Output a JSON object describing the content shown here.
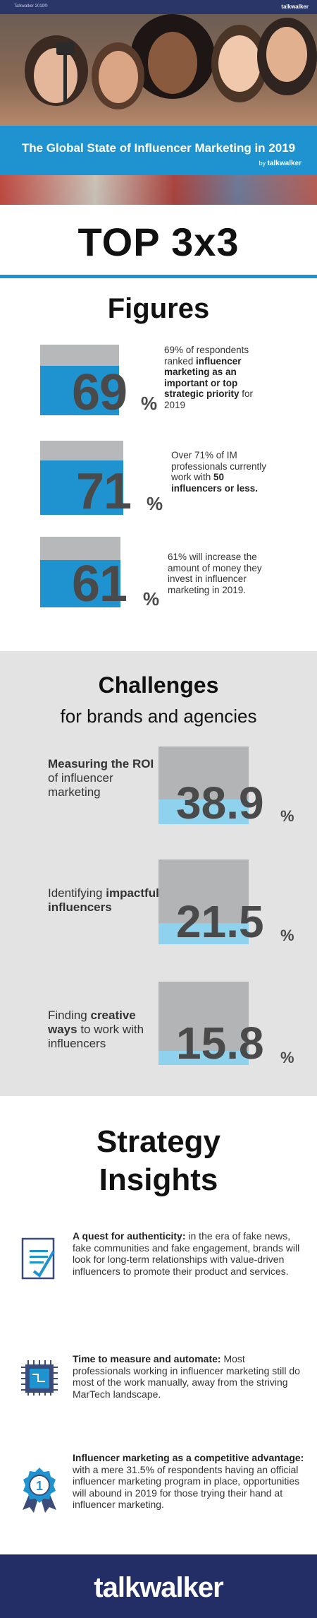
{
  "topbar": {
    "left_text": "Talkwalker 2019®",
    "brand": "talkwalker"
  },
  "hero": {
    "title": "The Global State of Influencer Marketing in 2019",
    "by_prefix": "by",
    "by_brand": "talkwalker"
  },
  "top3": {
    "title": "TOP 3x3"
  },
  "figures": {
    "title": "Figures",
    "items": [
      {
        "value": "69",
        "unit": "%",
        "percent": 69,
        "text_parts": [
          "69% of respondents ranked ",
          "influencer marketing as an important or top strategic priority",
          " for 2019"
        ]
      },
      {
        "value": "71",
        "unit": "%",
        "percent": 71,
        "text_parts": [
          "Over 71% of IM professionals currently work with ",
          "50 influencers or less.",
          ""
        ]
      },
      {
        "value": "61",
        "unit": "%",
        "percent": 61,
        "text_parts": [
          "61% will increase the amount of money they invest in influencer marketing in 2019.",
          "",
          ""
        ]
      }
    ]
  },
  "challenges": {
    "title": "Challenges",
    "subtitle": "for brands and agencies",
    "items": [
      {
        "label_parts": [
          "",
          "Measuring the ROI",
          " of influencer marketing"
        ],
        "value": "38.9",
        "unit": "%",
        "percent": 38.9
      },
      {
        "label_parts": [
          "Identifying ",
          "impactful influencers",
          ""
        ],
        "value": "21.5",
        "unit": "%",
        "percent": 21.5
      },
      {
        "label_parts": [
          "Finding ",
          "creative ways",
          " to work with influencers"
        ],
        "value": "15.8",
        "unit": "%",
        "percent": 15.8
      }
    ]
  },
  "strategy": {
    "title_line1": "Strategy",
    "title_line2": "Insights",
    "items": [
      {
        "icon": "document-check-icon",
        "lead": "A quest for authenticity:",
        "body": " in the era of fake news, fake communities and fake engagement, brands will look for long-term relationships with value-driven influencers to promote their product and services."
      },
      {
        "icon": "chip-icon",
        "lead": "Time to measure and automate:",
        "body": " Most professionals working in influencer marketing still do most of the work manually, away from the striving MarTech landscape."
      },
      {
        "icon": "award-badge-icon",
        "lead": "Influencer marketing as a competitive advantage:",
        "body": " with a mere 31.5% of respondents having an official influencer marketing program in place, opportunities will abound in 2019 for those trying their hand at influencer marketing."
      }
    ]
  },
  "footer": {
    "brand": "talkwalker"
  },
  "colors": {
    "navy": "#2a3568",
    "blue": "#1f93cf",
    "light_blue": "#8fd2ee",
    "gray": "#b7b8ba"
  }
}
